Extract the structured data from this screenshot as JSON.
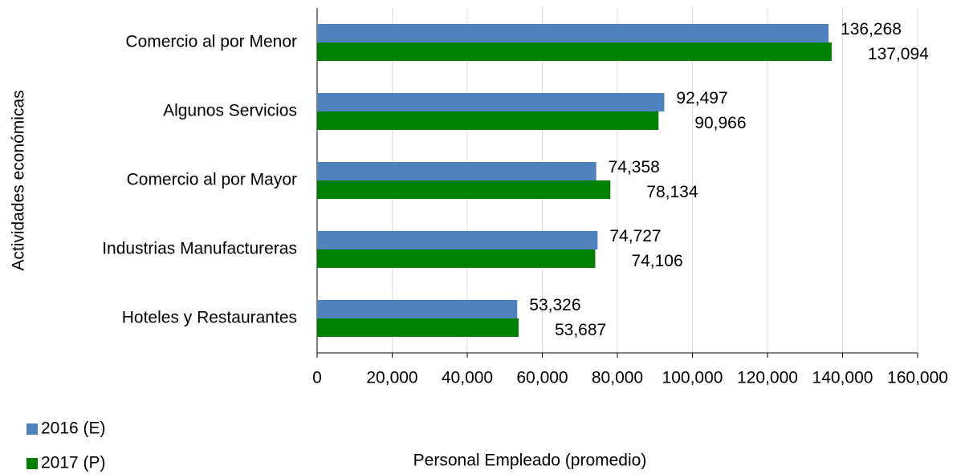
{
  "chart_data": {
    "type": "hbar",
    "categories": [
      "Comercio al por Menor",
      "Algunos Servicios",
      "Comercio al por Mayor",
      "Industrias Manufactureras",
      "Hoteles y Restaurantes"
    ],
    "series": [
      {
        "name": "2016 (E)",
        "color": "#4f81bd",
        "values": [
          136268,
          92497,
          74358,
          74727,
          53326
        ],
        "value_labels": [
          "136,268",
          "92,497",
          "74,358",
          "74,727",
          "53,326"
        ]
      },
      {
        "name": "2017 (P)",
        "color": "#008000",
        "values": [
          137094,
          90966,
          78134,
          74106,
          53687
        ],
        "value_labels": [
          "137,094",
          "90,966",
          "78,134",
          "74,106",
          "53,687"
        ]
      }
    ],
    "xlabel": "Personal Empleado (promedio)",
    "ylabel": "Actividades económicas",
    "xlim": [
      0,
      160000
    ],
    "xticks": [
      0,
      {
        "value": 20000,
        "label": "20,000"
      },
      {
        "value": 40000,
        "label": "40,000"
      },
      {
        "value": 60000,
        "label": "60,000"
      },
      {
        "value": 80000,
        "label": "80,000"
      },
      {
        "value": 100000,
        "label": "100,000"
      },
      {
        "value": 120000,
        "label": "120,000"
      },
      {
        "value": 140000,
        "label": "140,000"
      },
      {
        "value": 160000,
        "label": "160,000"
      }
    ],
    "grid": true
  }
}
